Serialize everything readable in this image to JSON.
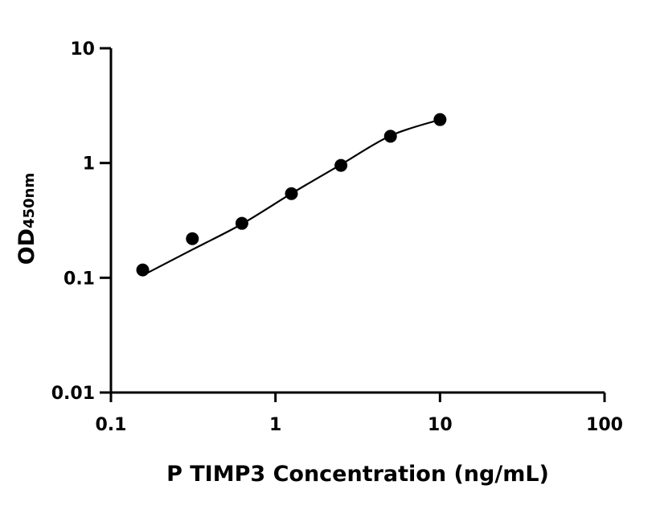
{
  "chart_data": {
    "type": "scatter",
    "title": "",
    "xlabel": "P TIMP3 Concentration (ng/mL)",
    "ylabel_main": "OD",
    "ylabel_sub": "450nm",
    "x_scale": "log",
    "y_scale": "log",
    "xlim": [
      0.1,
      100
    ],
    "ylim": [
      0.01,
      10
    ],
    "x_ticks": [
      0.1,
      1,
      10,
      100
    ],
    "x_tick_labels": [
      "0.1",
      "1",
      "10",
      "100"
    ],
    "y_ticks": [
      0.01,
      0.1,
      1,
      10
    ],
    "y_tick_labels": [
      "0.01",
      "0.1",
      "1",
      "10"
    ],
    "grid": false,
    "legend": "none",
    "points": {
      "x": [
        0.156,
        0.3125,
        0.625,
        1.25,
        2.5,
        5,
        10
      ],
      "y": [
        0.117,
        0.219,
        0.298,
        0.541,
        0.953,
        1.71,
        2.39
      ]
    },
    "fit_curve": {
      "x": [
        0.156,
        0.3125,
        0.625,
        1.25,
        2.5,
        5,
        10
      ],
      "y": [
        0.105,
        0.176,
        0.294,
        0.542,
        0.97,
        1.73,
        2.39
      ]
    },
    "color": "#000000"
  }
}
